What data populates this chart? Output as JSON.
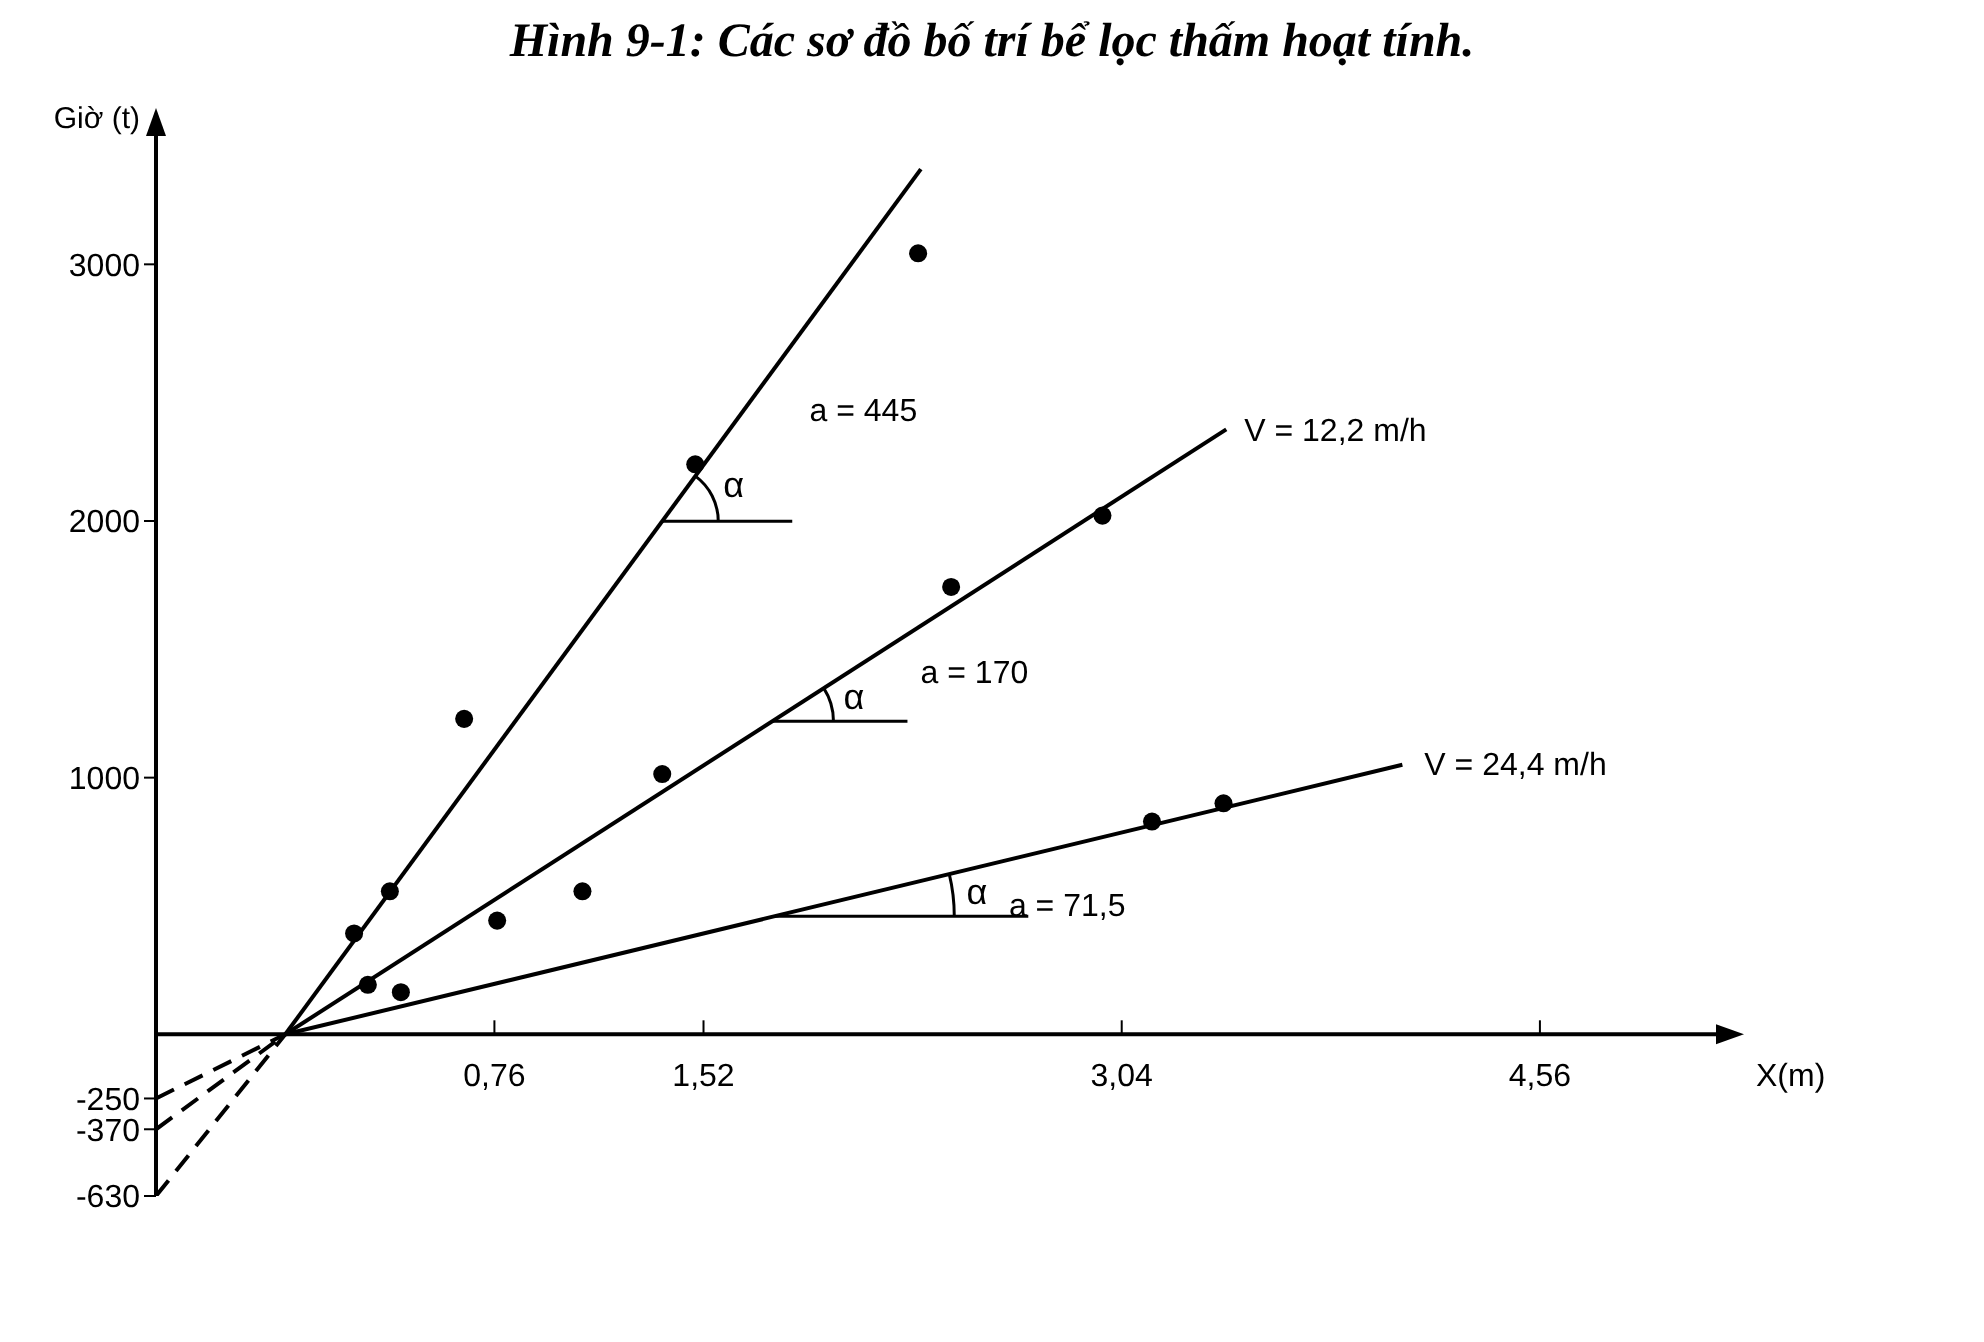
{
  "chart_data": {
    "type": "line",
    "title": "Hình 9-1: Các sơ đồ bố trí bể lọc thấm hoạt tính.",
    "xlabel": "X(m)",
    "ylabel": "Giờ (t)",
    "xlim": [
      -0.47,
      5.2
    ],
    "ylim": [
      -630,
      3500
    ],
    "xticks": [
      {
        "value": 0.76,
        "label": "0,76"
      },
      {
        "value": 1.52,
        "label": "1,52"
      },
      {
        "value": 3.04,
        "label": "3,04"
      },
      {
        "value": 4.56,
        "label": "4,56"
      }
    ],
    "yticks": [
      -630,
      -370,
      -250,
      1000,
      2000,
      3000
    ],
    "series": [
      {
        "color": "#000000",
        "line_style": "solid",
        "marker": "none",
        "x": [
          0,
          2.31
        ],
        "values": [
          0,
          3371
        ]
      },
      {
        "color": "#000000",
        "line_style": "solid",
        "marker": "none",
        "x": [
          0,
          3.42
        ],
        "values": [
          0,
          2357
        ]
      },
      {
        "color": "#000000",
        "line_style": "solid",
        "marker": "none",
        "x": [
          0,
          4.06
        ],
        "values": [
          0,
          1050
        ]
      },
      {
        "color": "#000000",
        "line_style": "dashed",
        "marker": "none",
        "x": [
          -0.47,
          0
        ],
        "values": [
          -630,
          0
        ]
      },
      {
        "color": "#000000",
        "line_style": "dashed",
        "marker": "none",
        "x": [
          -0.47,
          0
        ],
        "values": [
          -370,
          0
        ]
      },
      {
        "color": "#000000",
        "line_style": "dashed",
        "marker": "none",
        "x": [
          -0.47,
          0
        ],
        "values": [
          -250,
          0
        ]
      },
      {
        "type": "scatter",
        "color": "#000000",
        "marker": "circle",
        "x": [
          0.25,
          0.38,
          0.65,
          1.49,
          2.3
        ],
        "values": [
          393,
          557,
          1229,
          2221,
          3043
        ]
      },
      {
        "type": "scatter",
        "color": "#000000",
        "marker": "circle",
        "x": [
          0.3,
          0.77,
          1.37,
          2.42,
          2.97
        ],
        "values": [
          193,
          443,
          1014,
          1743,
          2021
        ]
      },
      {
        "type": "scatter",
        "color": "#000000",
        "marker": "circle",
        "x": [
          0.42,
          1.08,
          3.15,
          3.41
        ],
        "values": [
          164,
          557,
          829,
          900
        ]
      }
    ],
    "annotations": [
      {
        "text": "a = 445",
        "x": 1.68,
        "y": 2451
      },
      {
        "text": "α",
        "x": 1.37,
        "y": 1999
      },
      {
        "text": "V = 12,2 m/h",
        "x": 3.42,
        "y": 2357
      },
      {
        "text": "α",
        "x": 1.77,
        "y": 1220
      },
      {
        "text": "a = 170",
        "x": 2.28,
        "y": 1571
      },
      {
        "text": "V = 24,4 m/h",
        "x": 4.06,
        "y": 1050
      },
      {
        "text": "α",
        "x": 1.78,
        "y": 460
      },
      {
        "text": "a = 71,5",
        "x": 2.63,
        "y": 680
      }
    ]
  }
}
